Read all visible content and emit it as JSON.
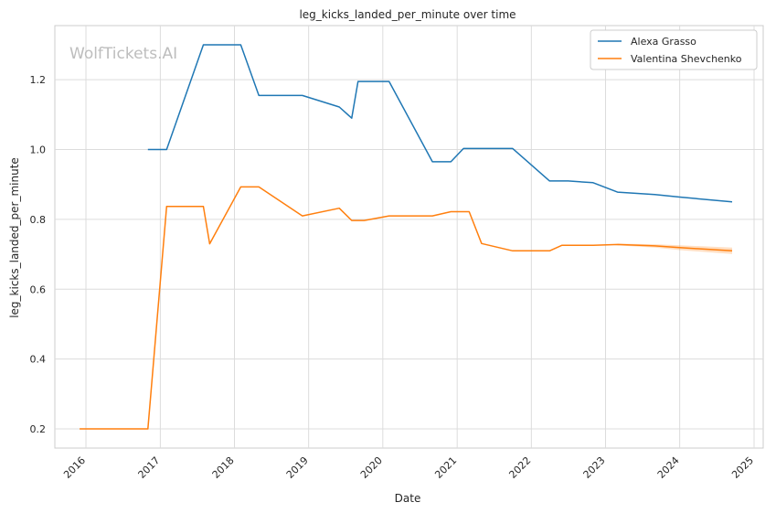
{
  "watermark": "WolfTickets.AI",
  "chart_data": {
    "type": "line",
    "title": "leg_kicks_landed_per_minute over time",
    "xlabel": "Date",
    "ylabel": "leg_kicks_landed_per_minute",
    "x_ticks": [
      "2016",
      "2017",
      "2018",
      "2019",
      "2020",
      "2021",
      "2022",
      "2023",
      "2024",
      "2025"
    ],
    "y_ticks": [
      "0.2",
      "0.4",
      "0.6",
      "0.8",
      "1.0",
      "1.2"
    ],
    "xlim": [
      "2015-08-01",
      "2025-02-15"
    ],
    "ylim": [
      0.145,
      1.355
    ],
    "grid": true,
    "legend_position": "top-right",
    "series": [
      {
        "name": "Alexa Grasso",
        "color": "#1f77b4",
        "points": [
          [
            "2016-11-01",
            1.0
          ],
          [
            "2017-02-01",
            1.0
          ],
          [
            "2017-08-01",
            1.3
          ],
          [
            "2018-02-01",
            1.3
          ],
          [
            "2018-05-01",
            1.155
          ],
          [
            "2018-12-01",
            1.155
          ],
          [
            "2019-06-01",
            1.122
          ],
          [
            "2019-08-01",
            1.09
          ],
          [
            "2019-09-01",
            1.195
          ],
          [
            "2020-02-01",
            1.195
          ],
          [
            "2020-09-01",
            0.965
          ],
          [
            "2020-12-01",
            0.965
          ],
          [
            "2021-02-01",
            1.003
          ],
          [
            "2021-10-01",
            1.003
          ],
          [
            "2022-04-01",
            0.91
          ],
          [
            "2022-07-01",
            0.91
          ],
          [
            "2022-11-01",
            0.905
          ],
          [
            "2023-03-01",
            0.878
          ],
          [
            "2023-09-01",
            0.871
          ],
          [
            "2024-01-01",
            0.864
          ],
          [
            "2024-09-15",
            0.85
          ]
        ]
      },
      {
        "name": "Valentina Shevchenko",
        "color": "#ff7f0e",
        "points": [
          [
            "2015-12-01",
            0.2
          ],
          [
            "2016-11-01",
            0.2
          ],
          [
            "2017-02-01",
            0.837
          ],
          [
            "2017-08-01",
            0.837
          ],
          [
            "2017-09-01",
            0.73
          ],
          [
            "2018-02-01",
            0.893
          ],
          [
            "2018-05-01",
            0.893
          ],
          [
            "2018-12-01",
            0.81
          ],
          [
            "2019-06-01",
            0.832
          ],
          [
            "2019-08-01",
            0.797
          ],
          [
            "2019-10-01",
            0.797
          ],
          [
            "2020-02-01",
            0.81
          ],
          [
            "2020-09-01",
            0.81
          ],
          [
            "2020-12-01",
            0.822
          ],
          [
            "2021-03-01",
            0.822
          ],
          [
            "2021-05-01",
            0.731
          ],
          [
            "2021-10-01",
            0.71
          ],
          [
            "2022-04-01",
            0.71
          ],
          [
            "2022-06-01",
            0.726
          ],
          [
            "2022-11-01",
            0.726
          ],
          [
            "2023-03-01",
            0.728
          ],
          [
            "2023-09-01",
            0.724
          ],
          [
            "2024-01-01",
            0.719
          ],
          [
            "2024-09-15",
            0.71
          ]
        ]
      }
    ]
  }
}
